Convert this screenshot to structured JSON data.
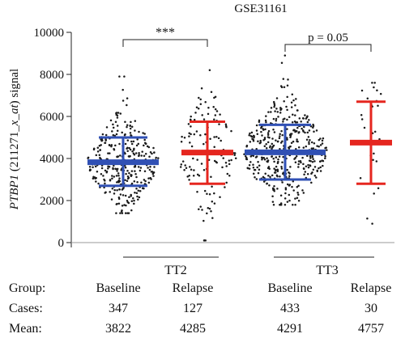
{
  "chart_data": {
    "type": "scatter",
    "title": "GSE31161",
    "ylabel_parts": {
      "gene": "PTBP1",
      "open": " (211271_",
      "probe": "x_at",
      "close": ") signal"
    },
    "ylim": [
      0,
      10000
    ],
    "yticks": [
      0,
      2000,
      4000,
      6000,
      8000,
      10000
    ],
    "ytick_labels": [
      "0",
      "2000",
      "4000",
      "6000",
      "8000",
      "10000"
    ],
    "groups": [
      {
        "label": "Baseline",
        "cohort": "TT2",
        "cases": "347",
        "mean": "3822",
        "mean_value": 3822,
        "sd_low": 2700,
        "sd_high": 5000,
        "ymin": 1400,
        "ymax": 7900,
        "color": "#3050b4"
      },
      {
        "label": "Relapse",
        "cohort": "TT2",
        "cases": "127",
        "mean": "4285",
        "mean_value": 4285,
        "sd_low": 2800,
        "sd_high": 5750,
        "ymin": 100,
        "ymax": 8200,
        "color": "#e5261f"
      },
      {
        "label": "Baseline",
        "cohort": "TT3",
        "cases": "433",
        "mean": "4291",
        "mean_value": 4291,
        "sd_low": 3000,
        "sd_high": 5600,
        "ymin": 1800,
        "ymax": 8900,
        "color": "#3050b4"
      },
      {
        "label": "Relapse",
        "cohort": "TT3",
        "cases": "30",
        "mean": "4757",
        "mean_value": 4757,
        "sd_low": 2800,
        "sd_high": 6700,
        "ymin": 900,
        "ymax": 7600,
        "color": "#e5261f"
      }
    ],
    "cohorts": [
      "TT2",
      "TT3"
    ],
    "comparisons": [
      {
        "label": "***",
        "between": [
          0,
          1
        ]
      },
      {
        "label": "p = 0.05",
        "between": [
          2,
          3
        ]
      }
    ],
    "table": {
      "group_label": "Group:",
      "cases_label": "Cases:",
      "mean_label": "Mean:"
    },
    "grid": false
  }
}
